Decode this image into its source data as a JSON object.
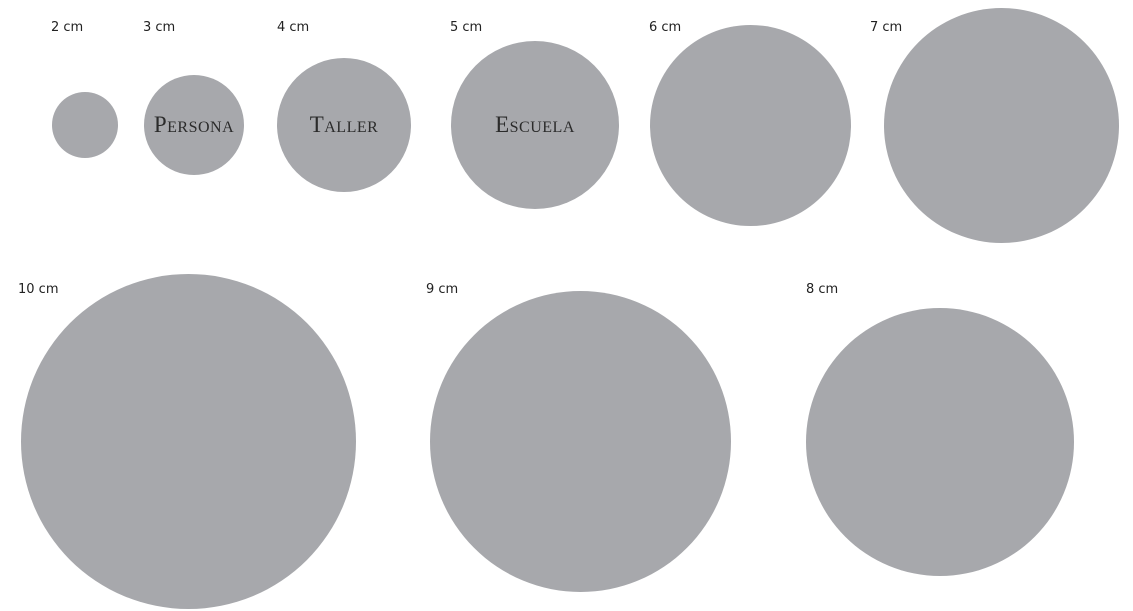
{
  "circle_color": "#a7a8ac",
  "circles": [
    {
      "id": "2",
      "size_label": "2 cm",
      "disc_label": ""
    },
    {
      "id": "3",
      "size_label": "3 cm",
      "disc_label": "Persona"
    },
    {
      "id": "4",
      "size_label": "4 cm",
      "disc_label": "Taller"
    },
    {
      "id": "5",
      "size_label": "5 cm",
      "disc_label": "Escuela"
    },
    {
      "id": "6",
      "size_label": "6 cm",
      "disc_label": ""
    },
    {
      "id": "7",
      "size_label": "7 cm",
      "disc_label": ""
    },
    {
      "id": "10",
      "size_label": "10 cm",
      "disc_label": ""
    },
    {
      "id": "9",
      "size_label": "9 cm",
      "disc_label": ""
    },
    {
      "id": "8",
      "size_label": "8 cm",
      "disc_label": ""
    }
  ]
}
